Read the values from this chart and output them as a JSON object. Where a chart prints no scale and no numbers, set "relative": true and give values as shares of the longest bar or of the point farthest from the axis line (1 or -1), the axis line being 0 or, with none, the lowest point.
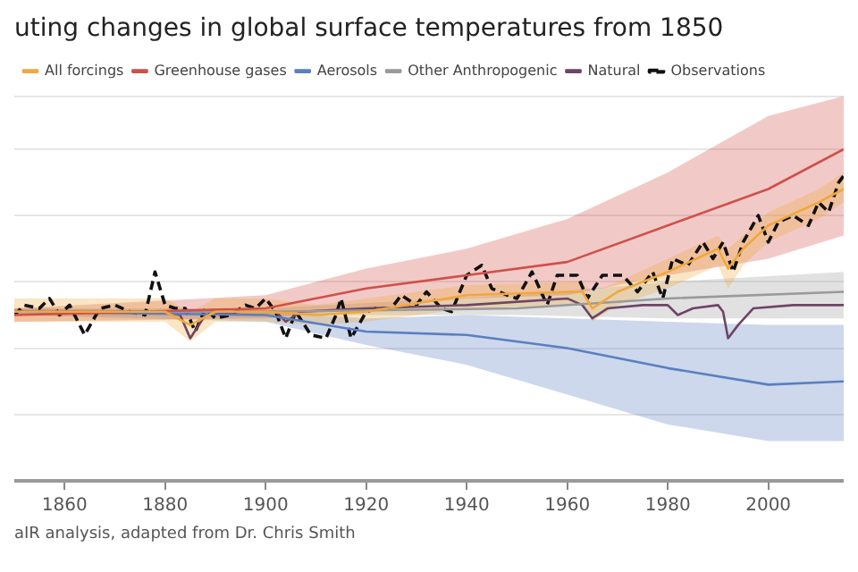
{
  "chart_data": {
    "type": "line",
    "title": "uting changes in global surface temperatures from 1850",
    "relative": true,
    "xlim": [
      1850,
      2015
    ],
    "xticks": [
      1860,
      1880,
      1900,
      1920,
      1940,
      1960,
      1980,
      2000
    ],
    "grid": "y",
    "legend": "top left",
    "annotations": [
      "aIR analysis, adapted from Dr. Chris Smith"
    ],
    "series": [
      {
        "name": "All forcings",
        "color": "#f0a83c",
        "line_style": "solid",
        "x": [
          1850,
          1880,
          1885,
          1890,
          1900,
          1910,
          1920,
          1940,
          1960,
          1963,
          1965,
          1970,
          1980,
          1990,
          1992,
          1995,
          2000,
          2010,
          2015
        ],
        "values": [
          0.51,
          0.51,
          0.47,
          0.51,
          0.51,
          0.5,
          0.51,
          0.56,
          0.57,
          0.57,
          0.52,
          0.57,
          0.63,
          0.7,
          0.64,
          0.7,
          0.77,
          0.84,
          0.88
        ],
        "lower": [
          0.48,
          0.48,
          0.42,
          0.48,
          0.48,
          0.47,
          0.48,
          0.52,
          0.53,
          0.53,
          0.48,
          0.53,
          0.58,
          0.65,
          0.58,
          0.65,
          0.72,
          0.79,
          0.84
        ],
        "upper": [
          0.55,
          0.55,
          0.51,
          0.55,
          0.55,
          0.53,
          0.55,
          0.59,
          0.6,
          0.6,
          0.57,
          0.6,
          0.67,
          0.74,
          0.7,
          0.74,
          0.81,
          0.88,
          0.93
        ]
      },
      {
        "name": "Greenhouse gases",
        "color": "#d0504a",
        "line_style": "solid",
        "x": [
          1850,
          1900,
          1920,
          1940,
          1960,
          1980,
          2000,
          2015
        ],
        "values": [
          0.5,
          0.52,
          0.58,
          0.62,
          0.66,
          0.77,
          0.88,
          1
        ],
        "lower": [
          0.48,
          0.49,
          0.52,
          0.55,
          0.56,
          0.62,
          0.67,
          0.74
        ],
        "upper": [
          0.52,
          0.56,
          0.64,
          0.7,
          0.79,
          0.93,
          1.1,
          1.16
        ]
      },
      {
        "name": "Aerosols",
        "color": "#5b7fc0",
        "line_style": "solid",
        "x": [
          1850,
          1900,
          1920,
          1940,
          1960,
          1980,
          2000,
          2015
        ],
        "values": [
          0.51,
          0.5,
          0.45,
          0.44,
          0.4,
          0.34,
          0.29,
          0.3
        ],
        "lower": [
          0.5,
          0.48,
          0.41,
          0.35,
          0.26,
          0.17,
          0.12,
          0.12
        ],
        "upper": [
          0.52,
          0.51,
          0.49,
          0.5,
          0.49,
          0.48,
          0.47,
          0.47
        ]
      },
      {
        "name": "Other Anthropogenic",
        "color": "#9a9a9a",
        "line_style": "solid",
        "x": [
          1850,
          1900,
          1950,
          1980,
          2015
        ],
        "values": [
          0.51,
          0.51,
          0.52,
          0.55,
          0.57
        ],
        "lower": [
          0.5,
          0.5,
          0.5,
          0.49,
          0.49
        ],
        "upper": [
          0.52,
          0.52,
          0.56,
          0.6,
          0.63
        ]
      },
      {
        "name": "Natural",
        "color": "#6e4466",
        "line_style": "solid",
        "x": [
          1850,
          1860,
          1870,
          1880,
          1883,
          1885,
          1888,
          1895,
          1902,
          1904,
          1907,
          1920,
          1940,
          1960,
          1963,
          1965,
          1968,
          1975,
          1980,
          1982,
          1985,
          1990,
          1991,
          1992,
          1994,
          1997,
          2005,
          2015
        ],
        "values": [
          0.51,
          0.51,
          0.51,
          0.51,
          0.5,
          0.43,
          0.5,
          0.51,
          0.51,
          0.48,
          0.51,
          0.52,
          0.53,
          0.55,
          0.53,
          0.49,
          0.52,
          0.53,
          0.53,
          0.5,
          0.52,
          0.53,
          0.51,
          0.43,
          0.47,
          0.52,
          0.53,
          0.53
        ]
      },
      {
        "name": "Observations",
        "color": "#111111",
        "line_style": "dashed",
        "x": [
          1850,
          1852,
          1855,
          1857,
          1859,
          1861,
          1864,
          1867,
          1870,
          1873,
          1876,
          1878,
          1880,
          1882,
          1884,
          1886,
          1888,
          1890,
          1893,
          1896,
          1898,
          1900,
          1902,
          1904,
          1906,
          1909,
          1912,
          1914,
          1915,
          1917,
          1920,
          1922,
          1925,
          1927,
          1930,
          1932,
          1935,
          1937,
          1940,
          1943,
          1945,
          1948,
          1950,
          1953,
          1956,
          1958,
          1962,
          1964,
          1967,
          1971,
          1974,
          1977,
          1979,
          1981,
          1984,
          1987,
          1989,
          1991,
          1993,
          1995,
          1998,
          2000,
          2002,
          2005,
          2008,
          2010,
          2012,
          2014,
          2015
        ],
        "values": [
          0.5,
          0.53,
          0.52,
          0.55,
          0.5,
          0.53,
          0.44,
          0.52,
          0.53,
          0.51,
          0.5,
          0.63,
          0.53,
          0.52,
          0.52,
          0.45,
          0.52,
          0.49,
          0.5,
          0.53,
          0.52,
          0.55,
          0.51,
          0.43,
          0.51,
          0.44,
          0.43,
          0.5,
          0.55,
          0.43,
          0.51,
          0.52,
          0.52,
          0.56,
          0.53,
          0.57,
          0.52,
          0.51,
          0.62,
          0.65,
          0.58,
          0.56,
          0.55,
          0.63,
          0.53,
          0.62,
          0.62,
          0.55,
          0.62,
          0.62,
          0.57,
          0.63,
          0.55,
          0.67,
          0.65,
          0.72,
          0.67,
          0.72,
          0.63,
          0.72,
          0.8,
          0.72,
          0.78,
          0.8,
          0.77,
          0.84,
          0.81,
          0.9,
          0.92
        ]
      }
    ]
  }
}
